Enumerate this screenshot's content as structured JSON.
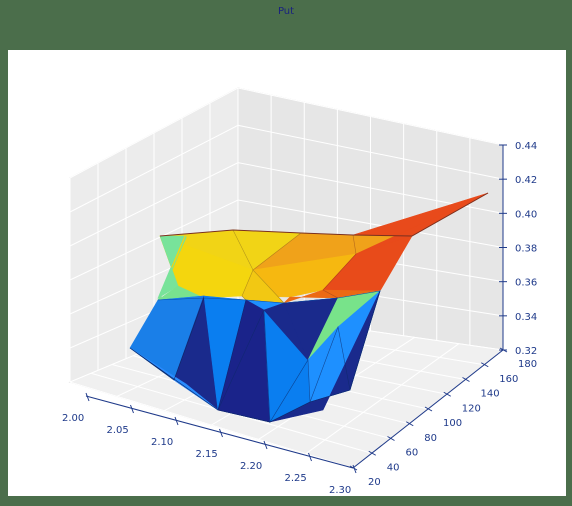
{
  "chart_data": {
    "type": "surface3d",
    "title": "Put",
    "x_ticks": [
      "2.00",
      "2.05",
      "2.10",
      "2.15",
      "2.20",
      "2.25",
      "2.30"
    ],
    "y_ticks": [
      "20",
      "40",
      "60",
      "80",
      "100",
      "120",
      "140",
      "160",
      "180"
    ],
    "z_ticks": [
      "0.32",
      "0.34",
      "0.36",
      "0.38",
      "0.40",
      "0.42",
      "0.44"
    ],
    "xlim": [
      2.0,
      2.3
    ],
    "ylim": [
      20,
      180
    ],
    "zlim": [
      0.32,
      0.44
    ],
    "grid": true,
    "colormap": "jet"
  }
}
